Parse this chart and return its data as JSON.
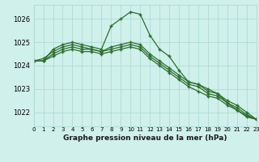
{
  "title": "Graphe pression niveau de la mer (hPa)",
  "background_color": "#cff0eb",
  "grid_color": "#a8d8d0",
  "line_color": "#2d6e2d",
  "x_labels": [
    "0",
    "1",
    "2",
    "3",
    "4",
    "5",
    "6",
    "7",
    "8",
    "9",
    "10",
    "11",
    "12",
    "13",
    "14",
    "15",
    "16",
    "17",
    "18",
    "19",
    "20",
    "21",
    "22",
    "23"
  ],
  "xlim": [
    0,
    23
  ],
  "ylim": [
    1021.4,
    1026.6
  ],
  "yticks": [
    1022,
    1023,
    1024,
    1025,
    1026
  ],
  "series": [
    [
      1024.2,
      1024.2,
      1024.7,
      1024.9,
      1025.0,
      1024.9,
      1024.8,
      1024.7,
      1025.7,
      1026.0,
      1026.3,
      1026.2,
      1025.3,
      1024.7,
      1024.4,
      1023.8,
      1023.3,
      1023.2,
      1023.0,
      1022.8,
      1022.4,
      1022.1,
      1021.85,
      1021.7
    ],
    [
      1024.2,
      1024.2,
      1024.5,
      1024.7,
      1024.8,
      1024.7,
      1024.7,
      1024.6,
      1024.7,
      1024.8,
      1024.9,
      1024.8,
      1024.4,
      1024.1,
      1023.8,
      1023.5,
      1023.2,
      1023.1,
      1022.8,
      1022.7,
      1022.4,
      1022.2,
      1021.9,
      1021.7
    ],
    [
      1024.2,
      1024.3,
      1024.6,
      1024.8,
      1024.9,
      1024.8,
      1024.7,
      1024.6,
      1024.8,
      1024.9,
      1025.0,
      1024.9,
      1024.5,
      1024.2,
      1023.9,
      1023.6,
      1023.3,
      1023.2,
      1022.9,
      1022.8,
      1022.5,
      1022.3,
      1022.0,
      1021.7
    ],
    [
      1024.2,
      1024.2,
      1024.4,
      1024.6,
      1024.7,
      1024.6,
      1024.6,
      1024.5,
      1024.6,
      1024.7,
      1024.8,
      1024.7,
      1024.3,
      1024.0,
      1023.7,
      1023.4,
      1023.1,
      1022.9,
      1022.7,
      1022.6,
      1022.3,
      1022.1,
      1021.8,
      1021.7
    ]
  ]
}
